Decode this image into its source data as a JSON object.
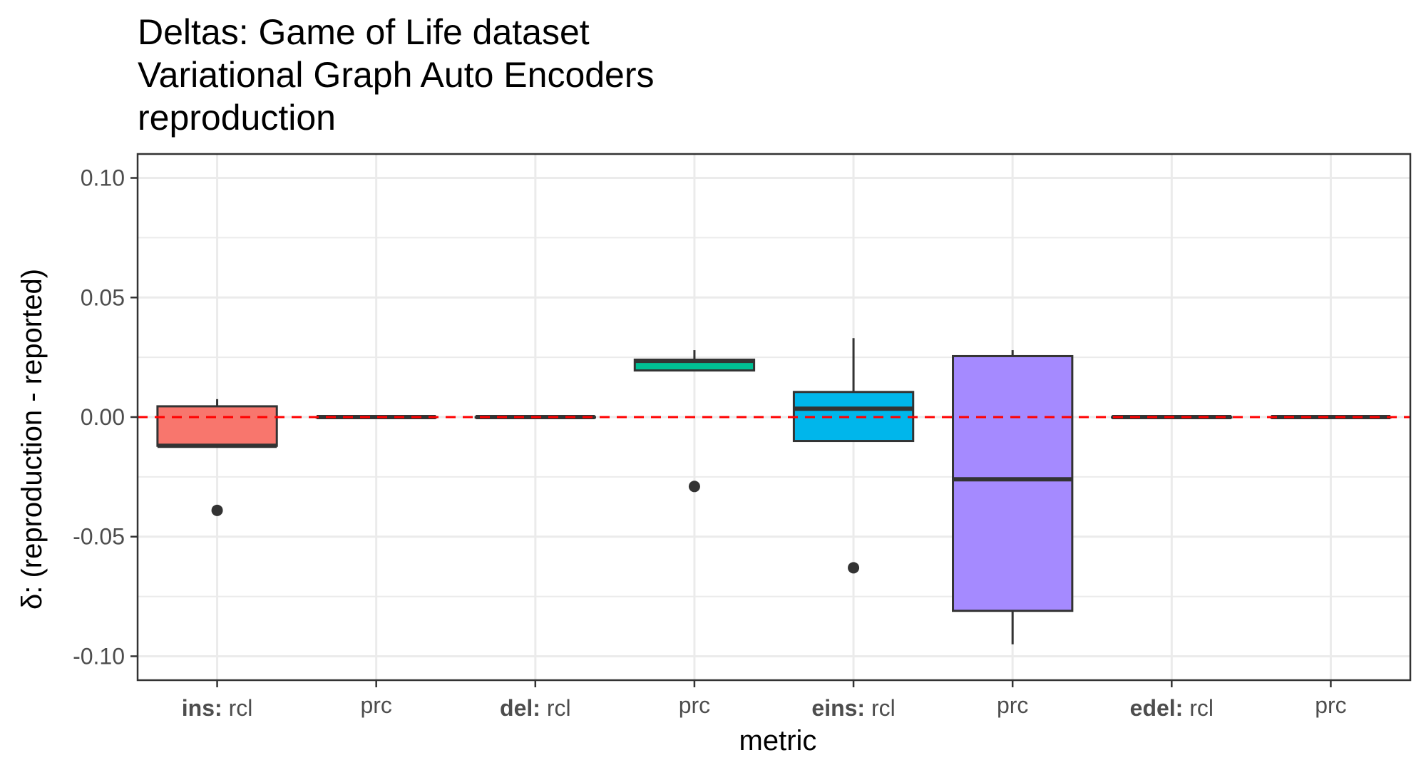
{
  "chart_data": {
    "type": "boxplot",
    "title_lines": [
      "Deltas: Game of Life dataset",
      "Variational Graph Auto Encoders",
      "reproduction"
    ],
    "xlabel": "metric",
    "ylabel": "δ: (reproduction - reported)",
    "ylim": [
      -0.11,
      0.11
    ],
    "yticks": [
      0.1,
      0.05,
      0.0,
      -0.05,
      -0.1
    ],
    "ytick_labels": [
      "0.10",
      "0.05",
      "0.00",
      "-0.05",
      "-0.10"
    ],
    "reference_line": {
      "y": 0.0,
      "color": "#ff0000",
      "style": "dashed"
    },
    "grid": true,
    "categories": [
      {
        "group": "ins:",
        "metric": "rcl",
        "fill": "#f8766d",
        "whisker_low": -0.012,
        "q1": -0.012,
        "median": -0.012,
        "q3": 0.0045,
        "whisker_high": 0.0075,
        "outliers": [
          -0.039
        ]
      },
      {
        "group": "",
        "metric": "prc",
        "fill": "#c49a00",
        "whisker_low": 0.0,
        "q1": 0.0,
        "median": 0.0,
        "q3": 0.0,
        "whisker_high": 0.0,
        "outliers": []
      },
      {
        "group": "del:",
        "metric": "rcl",
        "fill": "#53b400",
        "whisker_low": 0.0,
        "q1": 0.0,
        "median": 0.0,
        "q3": 0.0,
        "whisker_high": 0.0,
        "outliers": []
      },
      {
        "group": "",
        "metric": "prc",
        "fill": "#00c094",
        "whisker_low": 0.0195,
        "q1": 0.0195,
        "median": 0.0235,
        "q3": 0.024,
        "whisker_high": 0.028,
        "outliers": [
          -0.029
        ]
      },
      {
        "group": "eins:",
        "metric": "rcl",
        "fill": "#00b6eb",
        "whisker_low": -0.01,
        "q1": -0.01,
        "median": 0.0035,
        "q3": 0.0105,
        "whisker_high": 0.033,
        "outliers": [
          -0.063
        ]
      },
      {
        "group": "",
        "metric": "prc",
        "fill": "#a58aff",
        "whisker_low": -0.095,
        "q1": -0.081,
        "median": -0.026,
        "q3": 0.0255,
        "whisker_high": 0.028,
        "outliers": []
      },
      {
        "group": "edel:",
        "metric": "rcl",
        "fill": "#fb61d7",
        "whisker_low": 0.0,
        "q1": 0.0,
        "median": 0.0,
        "q3": 0.0,
        "whisker_high": 0.0,
        "outliers": []
      },
      {
        "group": "",
        "metric": "prc",
        "fill": "#f8766d",
        "whisker_low": 0.0,
        "q1": 0.0,
        "median": 0.0,
        "q3": 0.0,
        "whisker_high": 0.0,
        "outliers": []
      }
    ]
  }
}
